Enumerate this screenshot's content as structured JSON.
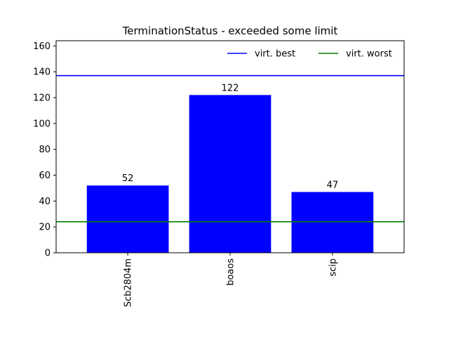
{
  "chart_data": {
    "type": "bar",
    "title": "TerminationStatus - exceeded some limit",
    "xlabel": "",
    "ylabel": "",
    "categories": [
      "Scb2804m",
      "boaos",
      "scip"
    ],
    "values": [
      52,
      122,
      47
    ],
    "bar_labels": [
      "52",
      "122",
      "47"
    ],
    "bar_color": "#0000ff",
    "ylim": [
      0,
      164
    ],
    "yticks": [
      0,
      20,
      40,
      60,
      80,
      100,
      120,
      140,
      160
    ],
    "grid": false,
    "legend_position": "top-right",
    "reference_lines": [
      {
        "name": "virt. best",
        "value": 137,
        "color": "#0000ff"
      },
      {
        "name": "virt. worst",
        "value": 24,
        "color": "#008000"
      }
    ]
  }
}
